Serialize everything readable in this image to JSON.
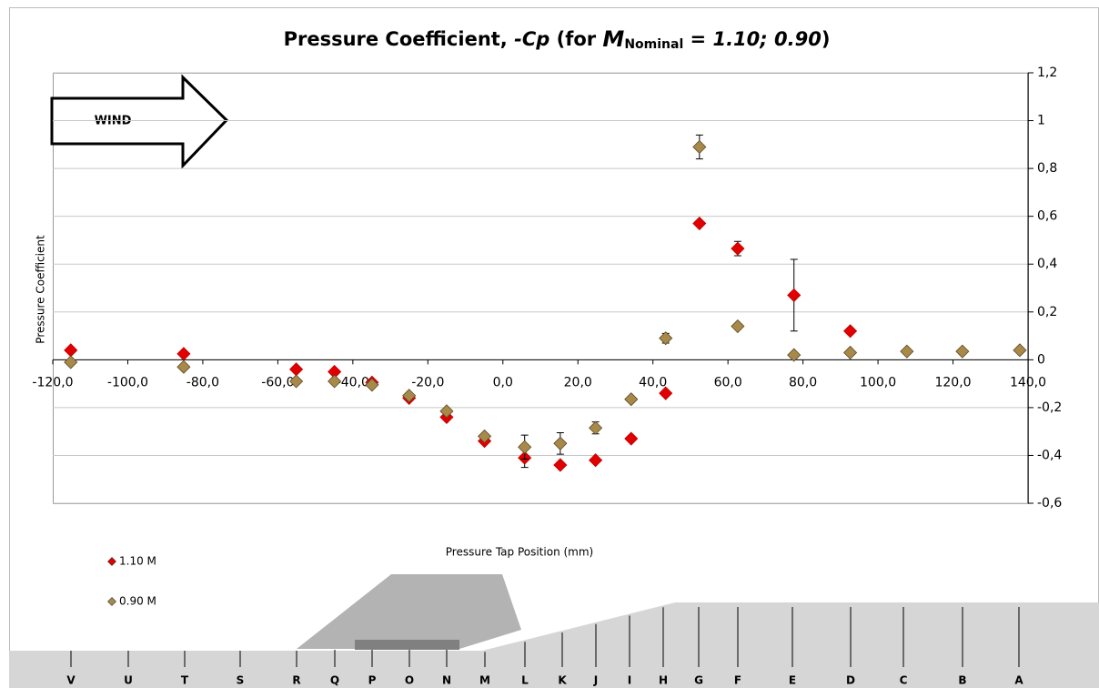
{
  "chart_data": {
    "type": "scatter",
    "title": {
      "prefix": "Pressure Coefficient, ",
      "symbol": "-Cp",
      "open": " (for ",
      "mach": "M",
      "subscript": "Nominal",
      "equals": " = ",
      "mach_values": "1.10; 0.90",
      "close": ")"
    },
    "x_label": "Pressure Tap Position (mm)",
    "y_label": "Pressure Coefficient",
    "annotation": "WIND",
    "xlim": [
      -120,
      140
    ],
    "ylim": [
      -0.6,
      1.2
    ],
    "xticks": [
      {
        "value": -120,
        "label": "-120,0"
      },
      {
        "value": -100,
        "label": "-100,0"
      },
      {
        "value": -80,
        "label": "-80,0"
      },
      {
        "value": -60,
        "label": "-60,0"
      },
      {
        "value": -40,
        "label": "-40,0"
      },
      {
        "value": -20,
        "label": "-20,0"
      },
      {
        "value": 0,
        "label": "0,0"
      },
      {
        "value": 20,
        "label": "20,0"
      },
      {
        "value": 40,
        "label": "40,0"
      },
      {
        "value": 60,
        "label": "60,0"
      },
      {
        "value": 80,
        "label": "80,0"
      },
      {
        "value": 100,
        "label": "100,0"
      },
      {
        "value": 120,
        "label": "120,0"
      },
      {
        "value": 140,
        "label": "140,0"
      }
    ],
    "yticks": [
      {
        "value": 1.2,
        "label": "1,2"
      },
      1,
      {
        "value": 0.8,
        "label": "0,8"
      },
      {
        "value": 0.6,
        "label": "0,6"
      },
      {
        "value": 0.4,
        "label": "0,4"
      },
      {
        "value": 0.2,
        "label": "0,2"
      },
      0,
      {
        "value": -0.2,
        "label": "-0,2"
      },
      {
        "value": -0.4,
        "label": "-0,4"
      },
      {
        "value": -0.6,
        "label": "-0,6"
      }
    ],
    "grid": true,
    "legend": "bottom-left",
    "series": [
      {
        "name": "1.10 M",
        "color": "#e00000",
        "x": [
          -115.2,
          -85.1,
          -55.1,
          -44.9,
          -34.9,
          -25,
          -15,
          -4.9,
          5.8,
          15.3,
          24.7,
          34.2,
          43.4,
          52.4,
          62.6,
          77.6,
          92.6
        ],
        "values": [
          0.04,
          0.025,
          -0.04,
          -0.05,
          -0.095,
          -0.16,
          -0.24,
          -0.34,
          -0.41,
          -0.44,
          -0.42,
          -0.33,
          -0.14,
          0.57,
          0.465,
          0.27,
          0.12
        ],
        "errors": [
          null,
          null,
          null,
          null,
          null,
          null,
          null,
          null,
          0.04,
          null,
          null,
          null,
          null,
          null,
          0.03,
          0.15,
          null
        ]
      },
      {
        "name": "0.90 M",
        "color": "#a8894a",
        "x": [
          -115.2,
          -85.1,
          -55.1,
          -44.9,
          -34.9,
          -25,
          -15,
          -4.9,
          5.8,
          15.3,
          24.7,
          34.2,
          43.4,
          52.4,
          62.6,
          77.6,
          92.6,
          107.7,
          122.5,
          137.8
        ],
        "values": [
          -0.01,
          -0.03,
          -0.09,
          -0.09,
          -0.105,
          -0.15,
          -0.215,
          -0.32,
          -0.365,
          -0.35,
          -0.285,
          -0.165,
          0.09,
          0.89,
          0.14,
          0.02,
          0.03,
          0.035,
          0.035,
          0.04
        ],
        "errors": [
          null,
          null,
          null,
          null,
          null,
          null,
          null,
          null,
          0.05,
          0.045,
          0.025,
          null,
          0.02,
          0.05,
          null,
          null,
          null,
          null,
          null,
          null
        ]
      }
    ],
    "tap_labels": [
      "V",
      "U",
      "T",
      "S",
      "R",
      "Q",
      "P",
      "O",
      "N",
      "M",
      "L",
      "K",
      "J",
      "I",
      "H",
      "G",
      "F",
      "E",
      "D",
      "C",
      "B",
      "A"
    ]
  }
}
